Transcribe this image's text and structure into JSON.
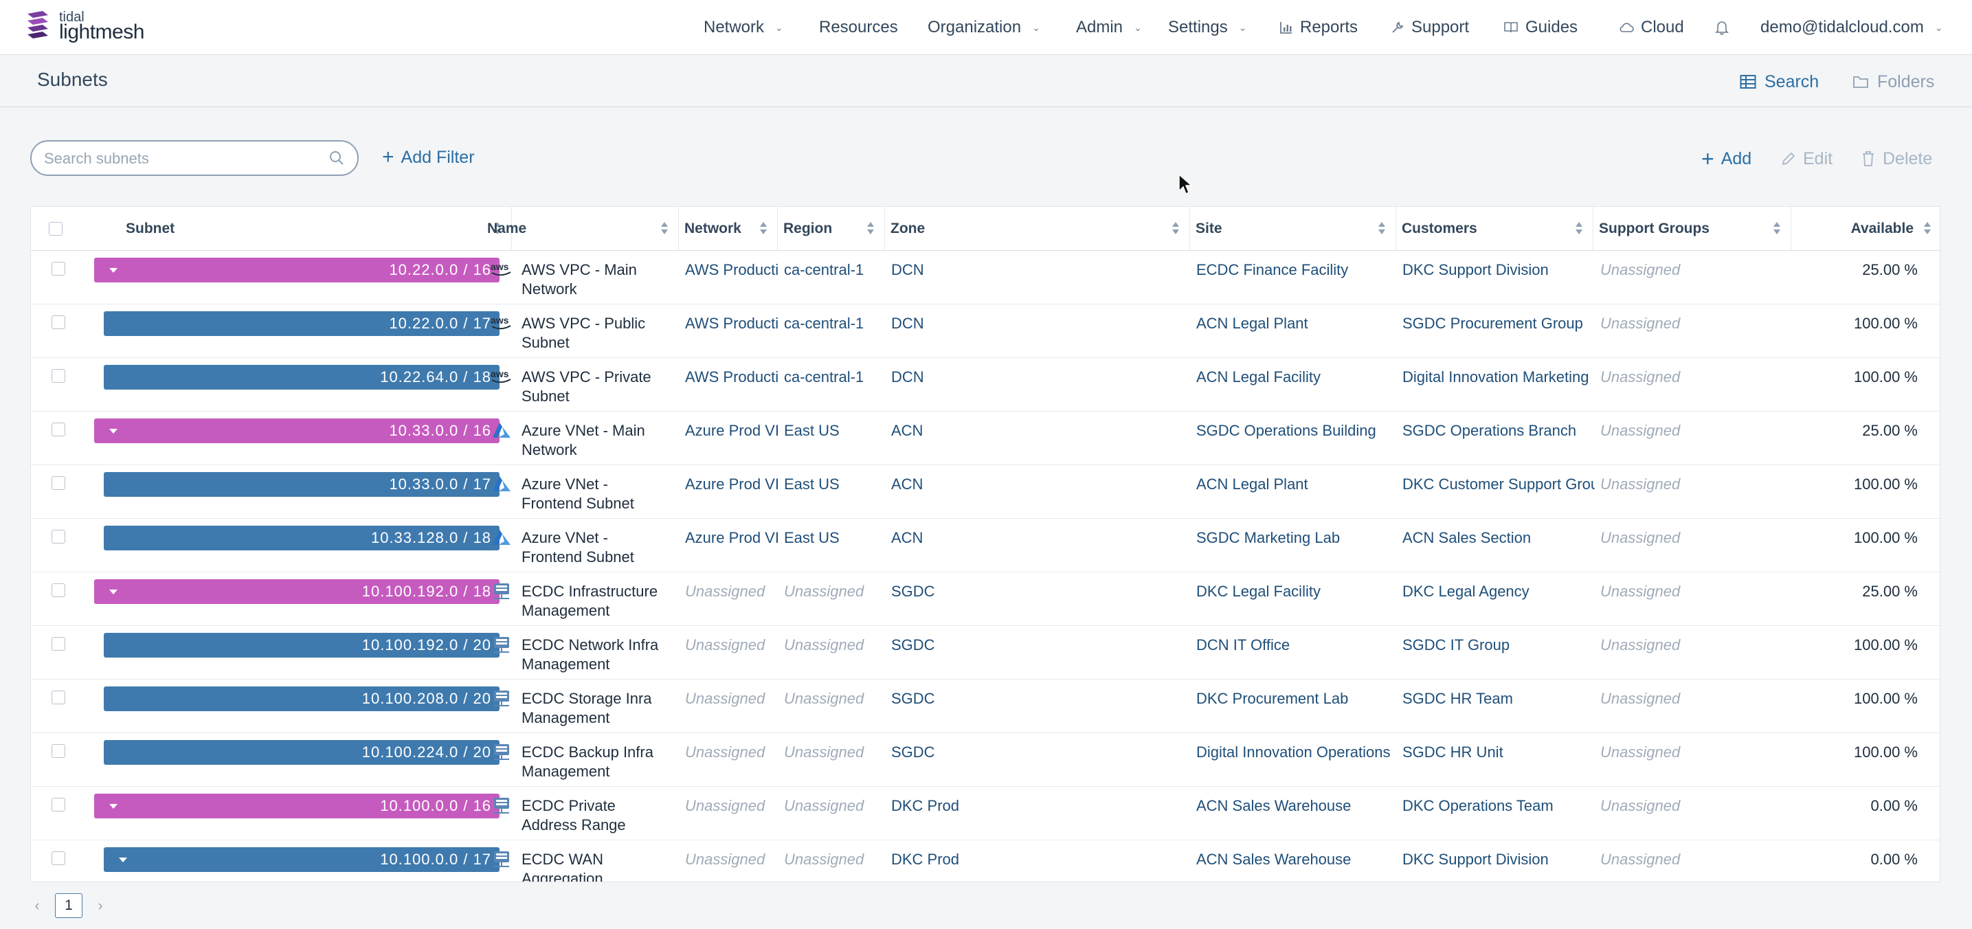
{
  "brand": {
    "line1": "tidal",
    "line2": "lightmesh"
  },
  "nav": {
    "network": "Network",
    "resources": "Resources",
    "organization": "Organization",
    "admin": "Admin",
    "settings": "Settings",
    "reports": "Reports",
    "support": "Support",
    "guides": "Guides",
    "cloud": "Cloud",
    "user": "demo@tidalcloud.com"
  },
  "page": {
    "title": "Subnets",
    "search_view": "Search",
    "folders_view": "Folders"
  },
  "toolbar": {
    "search_placeholder": "Search subnets",
    "add_filter": "Add Filter",
    "add": "Add",
    "edit": "Edit",
    "delete": "Delete"
  },
  "columns": {
    "subnet": "Subnet",
    "name": "Name",
    "network": "Network",
    "region": "Region",
    "zone": "Zone",
    "site": "Site",
    "customers": "Customers",
    "support_groups": "Support Groups",
    "available": "Available"
  },
  "colors": {
    "parent_subnet": "#c65bbf",
    "child_subnet": "#3f7aae",
    "accent": "#2c6ea3"
  },
  "rows": [
    {
      "subnet": "10.22.0.0 / 16",
      "kind": "parent",
      "expander": true,
      "provider": "aws-icon",
      "name": "AWS VPC - Main Network",
      "network": "AWS Producti",
      "region": "ca-central-1",
      "zone": "DCN",
      "site": "ECDC Finance Facility",
      "customers": "DKC Support Division",
      "support_groups": "Unassigned",
      "available": "25.00 %"
    },
    {
      "subnet": "10.22.0.0 / 17",
      "kind": "child",
      "expander": false,
      "provider": "aws-icon",
      "name": "AWS VPC - Public Subnet",
      "network": "AWS Producti",
      "region": "ca-central-1",
      "zone": "DCN",
      "site": "ACN Legal Plant",
      "customers": "SGDC Procurement Group",
      "support_groups": "Unassigned",
      "available": "100.00 %"
    },
    {
      "subnet": "10.22.64.0 / 18",
      "kind": "child",
      "expander": false,
      "provider": "aws-icon",
      "name": "AWS VPC - Private Subnet",
      "network": "AWS Producti",
      "region": "ca-central-1",
      "zone": "DCN",
      "site": "ACN Legal Facility",
      "customers": "Digital Innovation Marketing",
      "support_groups": "Unassigned",
      "available": "100.00 %"
    },
    {
      "subnet": "10.33.0.0 / 16",
      "kind": "parent",
      "expander": true,
      "provider": "azure-icon",
      "name": "Azure VNet - Main Network",
      "network": "Azure Prod VI",
      "region": "East US",
      "zone": "ACN",
      "site": "SGDC Operations Building",
      "customers": "SGDC Operations Branch",
      "support_groups": "Unassigned",
      "available": "25.00 %"
    },
    {
      "subnet": "10.33.0.0 / 17",
      "kind": "child",
      "expander": false,
      "provider": "azure-icon",
      "name": "Azure VNet - Frontend Subnet",
      "network": "Azure Prod VI",
      "region": "East US",
      "zone": "ACN",
      "site": "ACN Legal Plant",
      "customers": "DKC Customer Support Grou",
      "support_groups": "Unassigned",
      "available": "100.00 %"
    },
    {
      "subnet": "10.33.128.0 / 18",
      "kind": "child",
      "expander": false,
      "provider": "azure-icon",
      "name": "Azure VNet - Frontend Subnet",
      "network": "Azure Prod VI",
      "region": "East US",
      "zone": "ACN",
      "site": "SGDC Marketing Lab",
      "customers": "ACN Sales Section",
      "support_groups": "Unassigned",
      "available": "100.00 %"
    },
    {
      "subnet": "10.100.192.0 / 18",
      "kind": "parent",
      "expander": true,
      "provider": "datacenter-icon",
      "name": "ECDC Infrastructure Management",
      "network": "Unassigned",
      "region": "Unassigned",
      "zone": "SGDC",
      "site": "DKC Legal Facility",
      "customers": "DKC Legal Agency",
      "support_groups": "Unassigned",
      "available": "25.00 %"
    },
    {
      "subnet": "10.100.192.0 / 20",
      "kind": "child",
      "expander": false,
      "provider": "datacenter-icon",
      "name": "ECDC Network Infra Management",
      "network": "Unassigned",
      "region": "Unassigned",
      "zone": "SGDC",
      "site": "DCN IT Office",
      "customers": "SGDC IT Group",
      "support_groups": "Unassigned",
      "available": "100.00 %"
    },
    {
      "subnet": "10.100.208.0 / 20",
      "kind": "child",
      "expander": false,
      "provider": "datacenter-icon",
      "name": "ECDC Storage Inra Management",
      "network": "Unassigned",
      "region": "Unassigned",
      "zone": "SGDC",
      "site": "DKC Procurement Lab",
      "customers": "SGDC HR Team",
      "support_groups": "Unassigned",
      "available": "100.00 %"
    },
    {
      "subnet": "10.100.224.0 / 20",
      "kind": "child",
      "expander": false,
      "provider": "datacenter-icon",
      "name": "ECDC Backup Infra Management",
      "network": "Unassigned",
      "region": "Unassigned",
      "zone": "SGDC",
      "site": "Digital Innovation Operations",
      "customers": "SGDC HR Unit",
      "support_groups": "Unassigned",
      "available": "100.00 %"
    },
    {
      "subnet": "10.100.0.0 / 16",
      "kind": "parent",
      "expander": true,
      "provider": "datacenter-icon",
      "name": "ECDC Private Address Range",
      "network": "Unassigned",
      "region": "Unassigned",
      "zone": "DKC Prod",
      "site": "ACN Sales Warehouse",
      "customers": "DKC Operations Team",
      "support_groups": "Unassigned",
      "available": "0.00 %"
    },
    {
      "subnet": "10.100.0.0 / 17",
      "kind": "child",
      "expander": true,
      "provider": "datacenter-icon",
      "name": "ECDC WAN Aggregation.",
      "network": "Unassigned",
      "region": "Unassigned",
      "zone": "DKC Prod",
      "site": "ACN Sales Warehouse",
      "customers": "DKC Support Division",
      "support_groups": "Unassigned",
      "available": "0.00 %"
    }
  ],
  "pagination": {
    "current": "1",
    "prev": "‹",
    "next": "›"
  }
}
